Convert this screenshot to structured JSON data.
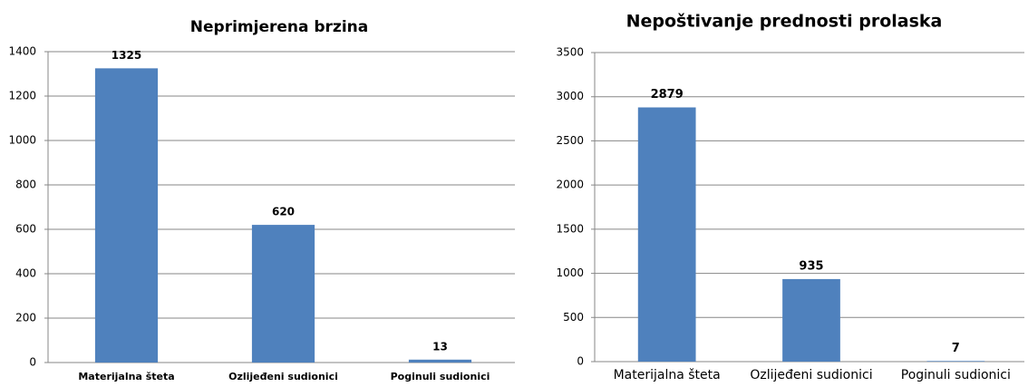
{
  "chart_data": [
    {
      "type": "bar",
      "title": "Neprimjerena brzina",
      "categories": [
        "Materijalna šteta",
        "Ozlijeđeni sudionici",
        "Poginuli sudionici"
      ],
      "values": [
        1325,
        620,
        13
      ],
      "color": "#4f81bd",
      "ylim": [
        0,
        1400
      ],
      "yticks": [
        0,
        200,
        400,
        600,
        800,
        1000,
        1200,
        1400
      ],
      "grid": true
    },
    {
      "type": "bar",
      "title": "Nepoštivanje prednosti prolaska",
      "categories": [
        "Materijalna šteta",
        "Ozlijeđeni sudionici",
        "Poginuli sudionici"
      ],
      "values": [
        2879,
        935,
        7
      ],
      "color": "#4f81bd",
      "ylim": [
        0,
        3500
      ],
      "yticks": [
        0,
        500,
        1000,
        1500,
        2000,
        2500,
        3000,
        3500
      ],
      "grid": true
    }
  ]
}
